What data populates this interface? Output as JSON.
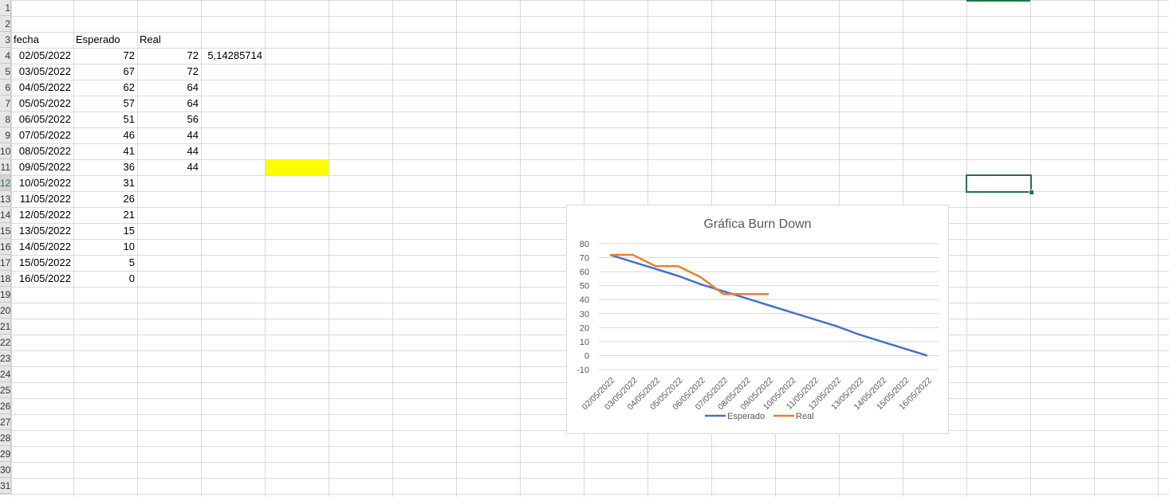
{
  "sheet": {
    "row_numbers": [
      "1",
      "2",
      "3",
      "4",
      "5",
      "6",
      "7",
      "8",
      "9",
      "10",
      "11",
      "12",
      "13",
      "14",
      "15",
      "16",
      "17",
      "18",
      "19",
      "20",
      "21",
      "22",
      "23",
      "24",
      "25",
      "26",
      "27",
      "28",
      "29",
      "30",
      "31"
    ],
    "headers": {
      "fecha": "fecha",
      "esperado": "Esperado",
      "real": "Real"
    },
    "extra_value": "5,14285714",
    "rows": [
      {
        "fecha": "02/05/2022",
        "esperado": "72",
        "real": "72"
      },
      {
        "fecha": "03/05/2022",
        "esperado": "67",
        "real": "72"
      },
      {
        "fecha": "04/05/2022",
        "esperado": "62",
        "real": "64"
      },
      {
        "fecha": "05/05/2022",
        "esperado": "57",
        "real": "64"
      },
      {
        "fecha": "06/05/2022",
        "esperado": "51",
        "real": "56"
      },
      {
        "fecha": "07/05/2022",
        "esperado": "46",
        "real": "44"
      },
      {
        "fecha": "08/05/2022",
        "esperado": "41",
        "real": "44"
      },
      {
        "fecha": "09/05/2022",
        "esperado": "36",
        "real": "44"
      },
      {
        "fecha": "10/05/2022",
        "esperado": "31",
        "real": ""
      },
      {
        "fecha": "11/05/2022",
        "esperado": "26",
        "real": ""
      },
      {
        "fecha": "12/05/2022",
        "esperado": "21",
        "real": ""
      },
      {
        "fecha": "13/05/2022",
        "esperado": "15",
        "real": ""
      },
      {
        "fecha": "14/05/2022",
        "esperado": "10",
        "real": ""
      },
      {
        "fecha": "15/05/2022",
        "esperado": "5",
        "real": ""
      },
      {
        "fecha": "16/05/2022",
        "esperado": "0",
        "real": ""
      }
    ],
    "highlight_color": "#ffff00",
    "selection_color": "#217346"
  },
  "chart_data": {
    "type": "line",
    "title": "Gráfica Burn Down",
    "categories": [
      "02/05/2022",
      "03/05/2022",
      "04/05/2022",
      "05/05/2022",
      "06/05/2022",
      "07/05/2022",
      "08/05/2022",
      "09/05/2022",
      "10/05/2022",
      "11/05/2022",
      "12/05/2022",
      "13/05/2022",
      "14/05/2022",
      "15/05/2022",
      "16/05/2022"
    ],
    "series": [
      {
        "name": "Esperado",
        "color": "#4472c4",
        "values": [
          72,
          67,
          62,
          57,
          51,
          46,
          41,
          36,
          31,
          26,
          21,
          15,
          10,
          5,
          0
        ]
      },
      {
        "name": "Real",
        "color": "#ed7d31",
        "values": [
          72,
          72,
          64,
          64,
          56,
          44,
          44,
          44,
          null,
          null,
          null,
          null,
          null,
          null,
          null
        ]
      }
    ],
    "y_ticks": [
      "80",
      "70",
      "60",
      "50",
      "40",
      "30",
      "20",
      "10",
      "0",
      "-10"
    ],
    "ylim": [
      -10,
      80
    ],
    "grid": true,
    "legend_position": "bottom"
  }
}
